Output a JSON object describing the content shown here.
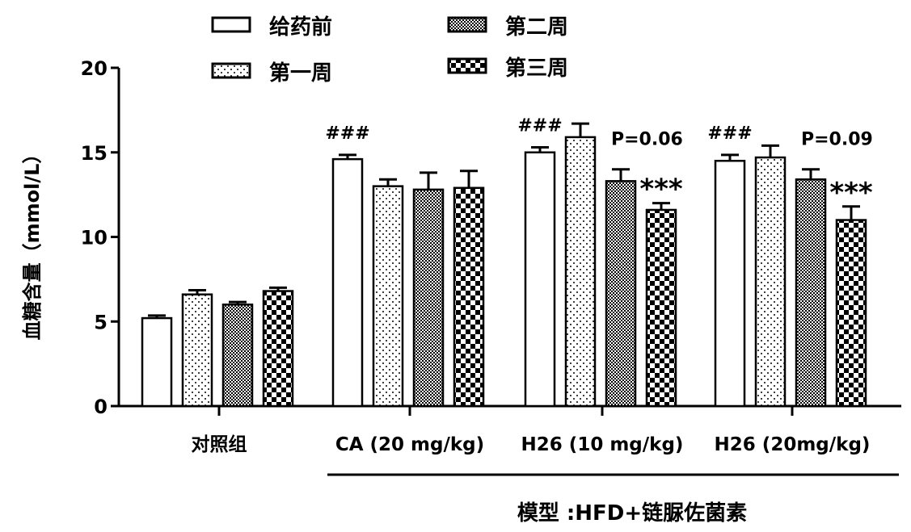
{
  "chart_data": {
    "type": "bar",
    "ylabel": "血糖含量（mmol/L）",
    "ylim": [
      0,
      20
    ],
    "yticks": [
      0,
      5,
      10,
      15,
      20
    ],
    "categories": [
      "对照组",
      "CA (20 mg/kg)",
      "H26 (10 mg/kg)",
      "H26 (20mg/kg)"
    ],
    "group_label": "模型 :HFD+链脲佐菌素",
    "legend_position": "top-left",
    "series": [
      {
        "name": "给药前",
        "pattern": "white",
        "values": [
          5.2,
          14.6,
          15.0,
          14.5
        ],
        "errors": [
          0.15,
          0.25,
          0.3,
          0.35
        ]
      },
      {
        "name": "第一周",
        "pattern": "dots",
        "values": [
          6.6,
          13.0,
          15.9,
          14.7
        ],
        "errors": [
          0.25,
          0.4,
          0.8,
          0.7
        ]
      },
      {
        "name": "第二周",
        "pattern": "dense",
        "values": [
          6.0,
          12.8,
          13.3,
          13.4
        ],
        "errors": [
          0.15,
          1.0,
          0.7,
          0.6
        ]
      },
      {
        "name": "第三周",
        "pattern": "checker",
        "values": [
          6.8,
          12.9,
          11.6,
          11.0
        ],
        "errors": [
          0.2,
          1.0,
          0.4,
          0.8
        ]
      }
    ],
    "annotations": [
      {
        "text": "###",
        "category": 1,
        "series": 0
      },
      {
        "text": "###",
        "category": 2,
        "series": 0
      },
      {
        "text": "###",
        "category": 3,
        "series": 0
      },
      {
        "text": "P=0.06",
        "category": 2,
        "series": 2
      },
      {
        "text": "***",
        "category": 2,
        "series": 3
      },
      {
        "text": "P=0.09",
        "category": 3,
        "series": 2
      },
      {
        "text": "***",
        "category": 3,
        "series": 3
      }
    ]
  },
  "colors": {
    "axis": "#000000",
    "bar_fill": "#ffffff"
  }
}
